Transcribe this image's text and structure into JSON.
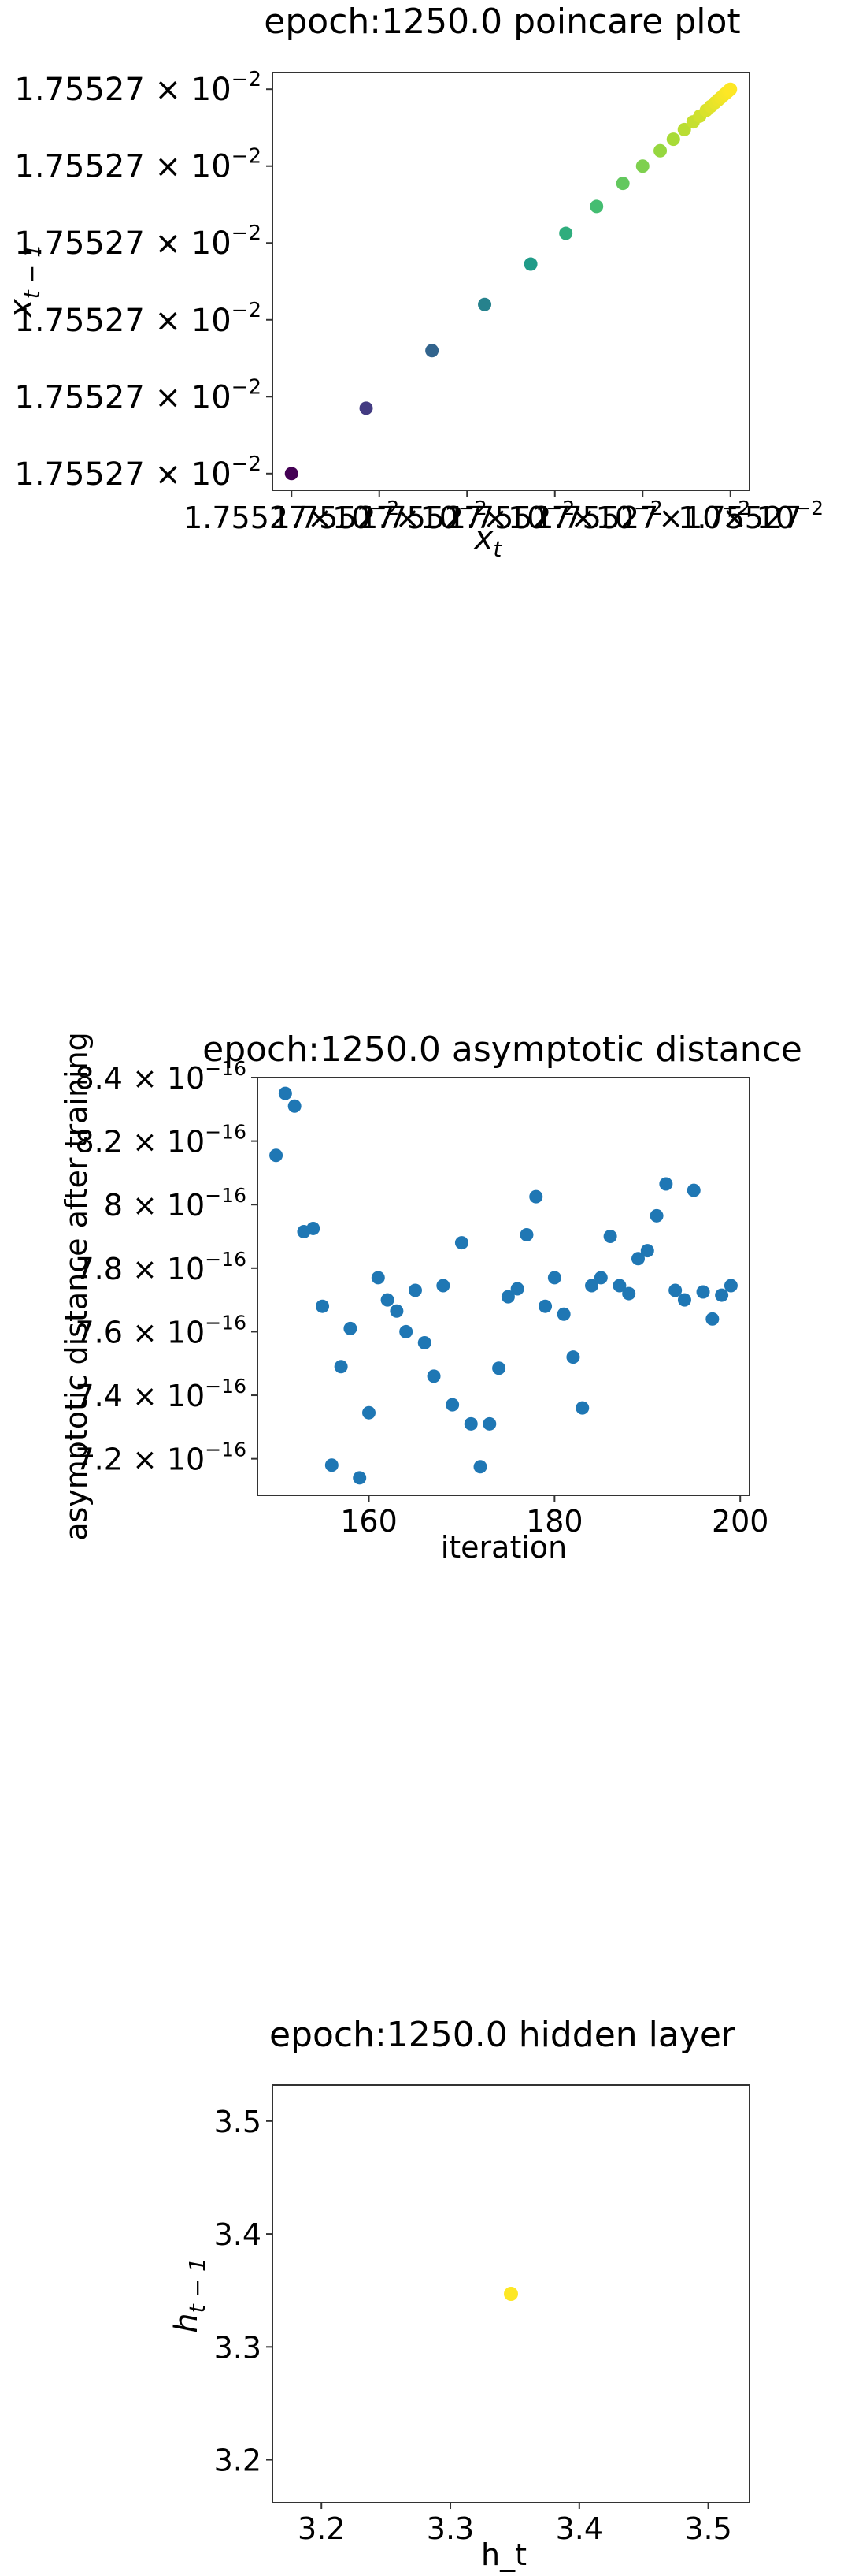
{
  "chart_data": [
    {
      "type": "scatter",
      "title": "epoch:1250.0 poincare plot",
      "xlabel_main": "x",
      "xlabel_sub": "t",
      "ylabel_main": "x",
      "ylabel_sub": "t − 1",
      "x_tick_labels": [
        "1.75527",
        "1.75527",
        "1.75527",
        "1.75527",
        "1.75527",
        "1.75527"
      ],
      "x_tick_suffix": "×10",
      "x_offset_text": "1.75527 × 10",
      "exp": "−2",
      "y_tick_labels": [
        "1.75527 × 10",
        "1.75527 × 10",
        "1.75527 × 10",
        "1.75527 × 10",
        "1.75527 × 10",
        "1.75527 × 10"
      ],
      "colormap": "viridis",
      "points_t": [
        0.0,
        0.17,
        0.32,
        0.44,
        0.545,
        0.625,
        0.695,
        0.755,
        0.8,
        0.84,
        0.87,
        0.895,
        0.915,
        0.93,
        0.945,
        0.955,
        0.965,
        0.972,
        0.978,
        0.984,
        0.989,
        0.993,
        0.996,
        0.999,
        1.0
      ],
      "colors": [
        "#440154",
        "#46337f",
        "#365c8d",
        "#277f8e",
        "#1fa187",
        "#4ac16d",
        "#a0da39",
        "#fde725"
      ]
    },
    {
      "type": "scatter",
      "title": "epoch:1250.0 asymptotic distance",
      "xlabel": "iteration",
      "ylabel": "asymptotic distance after training",
      "xlim": [
        148,
        201
      ],
      "ylim": [
        7.085e-16,
        8.4e-16
      ],
      "x_ticks": [
        160,
        180,
        200
      ],
      "x_tick_labels": [
        "160",
        "180",
        "200"
      ],
      "y_ticks": [
        7.2e-16,
        7.4e-16,
        7.6e-16,
        7.8e-16,
        8e-16,
        8.2e-16,
        8.4e-16
      ],
      "y_tick_labels": [
        "7.2 × 10",
        "7.4 × 10",
        "7.6 × 10",
        "7.8 × 10",
        "8 × 10",
        "8.2 × 10",
        "8.4 × 10"
      ],
      "y_tick_exp": "−16",
      "color": "#1f77b4",
      "x": [
        150,
        151,
        152,
        153,
        154,
        155,
        156,
        157,
        158,
        159,
        160,
        161,
        162,
        163,
        164,
        165,
        166,
        167,
        168,
        169,
        170,
        171,
        172,
        173,
        174,
        175,
        176,
        177,
        178,
        179,
        180,
        181,
        182,
        183,
        184,
        185,
        186,
        187,
        188,
        189,
        190,
        191,
        192,
        193,
        194,
        195,
        196,
        197,
        198,
        199
      ],
      "y": [
        8.155e-16,
        8.35e-16,
        8.31e-16,
        7.915e-16,
        7.925e-16,
        7.68e-16,
        7.18e-16,
        7.49e-16,
        7.61e-16,
        7.14e-16,
        7.345e-16,
        7.77e-16,
        7.7e-16,
        7.665e-16,
        7.6e-16,
        7.73e-16,
        7.565e-16,
        7.46e-16,
        7.745e-16,
        7.37e-16,
        7.88e-16,
        7.31e-16,
        7.175e-16,
        7.31e-16,
        7.485e-16,
        7.71e-16,
        7.735e-16,
        7.905e-16,
        8.025e-16,
        7.68e-16,
        7.77e-16,
        7.655e-16,
        7.52e-16,
        7.36e-16,
        7.745e-16,
        7.77e-16,
        7.9e-16,
        7.745e-16,
        7.72e-16,
        7.83e-16,
        7.855e-16,
        7.965e-16,
        8.065e-16,
        7.73e-16,
        7.7e-16,
        8.045e-16,
        7.725e-16,
        7.64e-16,
        7.715e-16,
        7.745e-16
      ]
    },
    {
      "type": "scatter",
      "title": "epoch:1250.0 hidden layer",
      "xlabel": "h_t",
      "ylabel_main": "h",
      "ylabel_sub": "t − 1",
      "xlim": [
        3.162,
        3.532
      ],
      "ylim": [
        3.162,
        3.532
      ],
      "x_ticks": [
        3.2,
        3.3,
        3.4,
        3.5
      ],
      "x_tick_labels": [
        "3.2",
        "3.3",
        "3.4",
        "3.5"
      ],
      "y_ticks": [
        3.2,
        3.3,
        3.4,
        3.5
      ],
      "y_tick_labels": [
        "3.2",
        "3.3",
        "3.4",
        "3.5"
      ],
      "color": "#fde725",
      "x": [
        3.347
      ],
      "y": [
        3.347
      ]
    }
  ]
}
